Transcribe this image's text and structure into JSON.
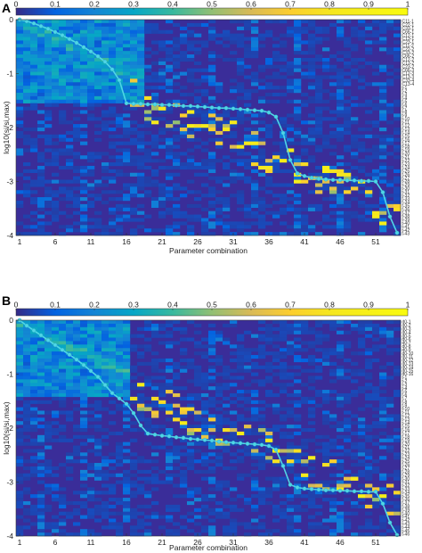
{
  "chart_data": [
    {
      "panel": "A",
      "type": "heatmap",
      "xlabel": "Parameter combination",
      "ylabel": "log10(si/si,max)",
      "colorbar_ticks": [
        "0",
        "0.1",
        "0.2",
        "0.3",
        "0.4",
        "0.5",
        "0.6",
        "0.7",
        "0.8",
        "0.9",
        "1"
      ],
      "x_ticks": [
        "1",
        "6",
        "11",
        "16",
        "21",
        "26",
        "31",
        "36",
        "41",
        "46",
        "51"
      ],
      "y_ticks": [
        "0",
        "-1",
        "-2",
        "-3",
        "-4"
      ],
      "clim": [
        0,
        1
      ],
      "ylim": [
        -4,
        0
      ],
      "n_cols": 54,
      "n_rows": 62,
      "row_labels": [
        "C11-1",
        "C22-1",
        "C33-1",
        "C66-1",
        "C12-1",
        "C13-1",
        "C23-1",
        "C11-2",
        "C22-2",
        "C33-2",
        "C66-2",
        "C12-2",
        "C13-2",
        "C23-2",
        "C66-3",
        "C12-3",
        "C13-3",
        "C33-4",
        "C13-4",
        "t-1",
        "t-2",
        "t-3",
        "t-4",
        "t-5",
        "t-6",
        "t-7",
        "t-8",
        "t-9",
        "t-10",
        "t-11",
        "t-12",
        "t-13",
        "t-14",
        "t-15",
        "t-16",
        "t-17",
        "t-18",
        "t-19",
        "t-20",
        "t-21",
        "t-22",
        "t-23",
        "t-24",
        "t-25",
        "t-26",
        "t-27",
        "t-28",
        "t-29",
        "t-30",
        "t-31",
        "t-32",
        "t-33",
        "t-34",
        "t-35",
        "t-36",
        "t-37",
        "t-38",
        "t-39",
        "t-40",
        "t-41",
        "t-42",
        "t-43"
      ],
      "singular_value_curve": [
        {
          "x": 1,
          "y": 0
        },
        {
          "x": 2,
          "y": -0.03
        },
        {
          "x": 3,
          "y": -0.07
        },
        {
          "x": 4,
          "y": -0.12
        },
        {
          "x": 5,
          "y": -0.17
        },
        {
          "x": 6,
          "y": -0.23
        },
        {
          "x": 7,
          "y": -0.29
        },
        {
          "x": 8,
          "y": -0.36
        },
        {
          "x": 9,
          "y": -0.43
        },
        {
          "x": 10,
          "y": -0.51
        },
        {
          "x": 11,
          "y": -0.59
        },
        {
          "x": 12,
          "y": -0.68
        },
        {
          "x": 13,
          "y": -0.78
        },
        {
          "x": 14,
          "y": -0.92
        },
        {
          "x": 15,
          "y": -1.12
        },
        {
          "x": 16,
          "y": -1.55
        },
        {
          "x": 17,
          "y": -1.56
        },
        {
          "x": 18,
          "y": -1.56
        },
        {
          "x": 19,
          "y": -1.57
        },
        {
          "x": 20,
          "y": -1.57
        },
        {
          "x": 21,
          "y": -1.58
        },
        {
          "x": 22,
          "y": -1.58
        },
        {
          "x": 23,
          "y": -1.59
        },
        {
          "x": 24,
          "y": -1.6
        },
        {
          "x": 25,
          "y": -1.6
        },
        {
          "x": 26,
          "y": -1.61
        },
        {
          "x": 27,
          "y": -1.62
        },
        {
          "x": 28,
          "y": -1.63
        },
        {
          "x": 29,
          "y": -1.64
        },
        {
          "x": 30,
          "y": -1.64
        },
        {
          "x": 31,
          "y": -1.65
        },
        {
          "x": 32,
          "y": -1.66
        },
        {
          "x": 33,
          "y": -1.67
        },
        {
          "x": 34,
          "y": -1.68
        },
        {
          "x": 35,
          "y": -1.69
        },
        {
          "x": 36,
          "y": -1.72
        },
        {
          "x": 37,
          "y": -1.8
        },
        {
          "x": 38,
          "y": -2.1
        },
        {
          "x": 39,
          "y": -2.6
        },
        {
          "x": 40,
          "y": -2.85
        },
        {
          "x": 41,
          "y": -2.9
        },
        {
          "x": 42,
          "y": -2.93
        },
        {
          "x": 43,
          "y": -2.95
        },
        {
          "x": 44,
          "y": -2.96
        },
        {
          "x": 45,
          "y": -2.97
        },
        {
          "x": 46,
          "y": -2.97
        },
        {
          "x": 47,
          "y": -2.98
        },
        {
          "x": 48,
          "y": -2.98
        },
        {
          "x": 49,
          "y": -2.99
        },
        {
          "x": 50,
          "y": -2.99
        },
        {
          "x": 51,
          "y": -3.0
        },
        {
          "x": 52,
          "y": -3.2
        },
        {
          "x": 53,
          "y": -3.65
        },
        {
          "x": 54,
          "y": -3.95
        }
      ]
    },
    {
      "panel": "B",
      "type": "heatmap",
      "xlabel": "Parameter combination",
      "ylabel": "log10(si/si,max)",
      "colorbar_ticks": [
        "0",
        "0.1",
        "0.2",
        "0.3",
        "0.4",
        "0.5",
        "0.6",
        "0.7",
        "0.8",
        "0.9",
        "1"
      ],
      "x_ticks": [
        "1",
        "6",
        "11",
        "16",
        "21",
        "26",
        "31",
        "36",
        "41",
        "46",
        "51"
      ],
      "y_ticks": [
        "0",
        "-1",
        "-2",
        "-3",
        "-4"
      ],
      "clim": [
        0,
        1
      ],
      "ylim": [
        -4,
        0
      ],
      "n_cols": 54,
      "n_rows": 62,
      "row_labels": [
        "d0-1",
        "d0-2",
        "d0-3",
        "d0-4",
        "d0-5",
        "d0-6",
        "d0-7",
        "d0-8",
        "d0-9",
        "d0-10",
        "d0-11",
        "d0-12",
        "d0-13",
        "d0-14",
        "d0-15",
        "d0-16",
        "t-1",
        "t-2",
        "t-3",
        "t-4",
        "t-5",
        "t-6",
        "t-7",
        "t-8",
        "t-9",
        "t-10",
        "t-11",
        "t-12",
        "t-13",
        "t-14",
        "t-15",
        "t-16",
        "t-17",
        "t-18",
        "t-19",
        "t-20",
        "t-21",
        "t-22",
        "t-23",
        "t-24",
        "t-25",
        "t-26",
        "t-27",
        "t-28",
        "t-29",
        "t-30",
        "t-31",
        "t-32",
        "t-33",
        "t-34",
        "t-35",
        "t-36",
        "t-37",
        "t-38",
        "t-39",
        "t-40",
        "t-41",
        "t-42",
        "t-43",
        "t-44",
        "t-45",
        "t-46"
      ],
      "singular_value_curve": [
        {
          "x": 1,
          "y": 0
        },
        {
          "x": 2,
          "y": -0.1
        },
        {
          "x": 3,
          "y": -0.19
        },
        {
          "x": 4,
          "y": -0.28
        },
        {
          "x": 5,
          "y": -0.37
        },
        {
          "x": 6,
          "y": -0.46
        },
        {
          "x": 7,
          "y": -0.55
        },
        {
          "x": 8,
          "y": -0.64
        },
        {
          "x": 9,
          "y": -0.73
        },
        {
          "x": 10,
          "y": -0.83
        },
        {
          "x": 11,
          "y": -0.94
        },
        {
          "x": 12,
          "y": -1.05
        },
        {
          "x": 13,
          "y": -1.2
        },
        {
          "x": 14,
          "y": -1.35
        },
        {
          "x": 15,
          "y": -1.45
        },
        {
          "x": 16,
          "y": -1.55
        },
        {
          "x": 17,
          "y": -1.72
        },
        {
          "x": 18,
          "y": -1.95
        },
        {
          "x": 19,
          "y": -2.1
        },
        {
          "x": 20,
          "y": -2.12
        },
        {
          "x": 21,
          "y": -2.14
        },
        {
          "x": 22,
          "y": -2.15
        },
        {
          "x": 23,
          "y": -2.17
        },
        {
          "x": 24,
          "y": -2.18
        },
        {
          "x": 25,
          "y": -2.2
        },
        {
          "x": 26,
          "y": -2.21
        },
        {
          "x": 27,
          "y": -2.22
        },
        {
          "x": 28,
          "y": -2.23
        },
        {
          "x": 29,
          "y": -2.25
        },
        {
          "x": 30,
          "y": -2.26
        },
        {
          "x": 31,
          "y": -2.27
        },
        {
          "x": 32,
          "y": -2.28
        },
        {
          "x": 33,
          "y": -2.29
        },
        {
          "x": 34,
          "y": -2.3
        },
        {
          "x": 35,
          "y": -2.31
        },
        {
          "x": 36,
          "y": -2.33
        },
        {
          "x": 37,
          "y": -2.4
        },
        {
          "x": 38,
          "y": -2.7
        },
        {
          "x": 39,
          "y": -3.05
        },
        {
          "x": 40,
          "y": -3.1
        },
        {
          "x": 41,
          "y": -3.12
        },
        {
          "x": 42,
          "y": -3.13
        },
        {
          "x": 43,
          "y": -3.14
        },
        {
          "x": 44,
          "y": -3.15
        },
        {
          "x": 45,
          "y": -3.15
        },
        {
          "x": 46,
          "y": -3.16
        },
        {
          "x": 47,
          "y": -3.16
        },
        {
          "x": 48,
          "y": -3.17
        },
        {
          "x": 49,
          "y": -3.17
        },
        {
          "x": 50,
          "y": -3.18
        },
        {
          "x": 51,
          "y": -3.18
        },
        {
          "x": 52,
          "y": -3.4
        },
        {
          "x": 53,
          "y": -3.75
        },
        {
          "x": 54,
          "y": -3.98
        }
      ]
    }
  ]
}
